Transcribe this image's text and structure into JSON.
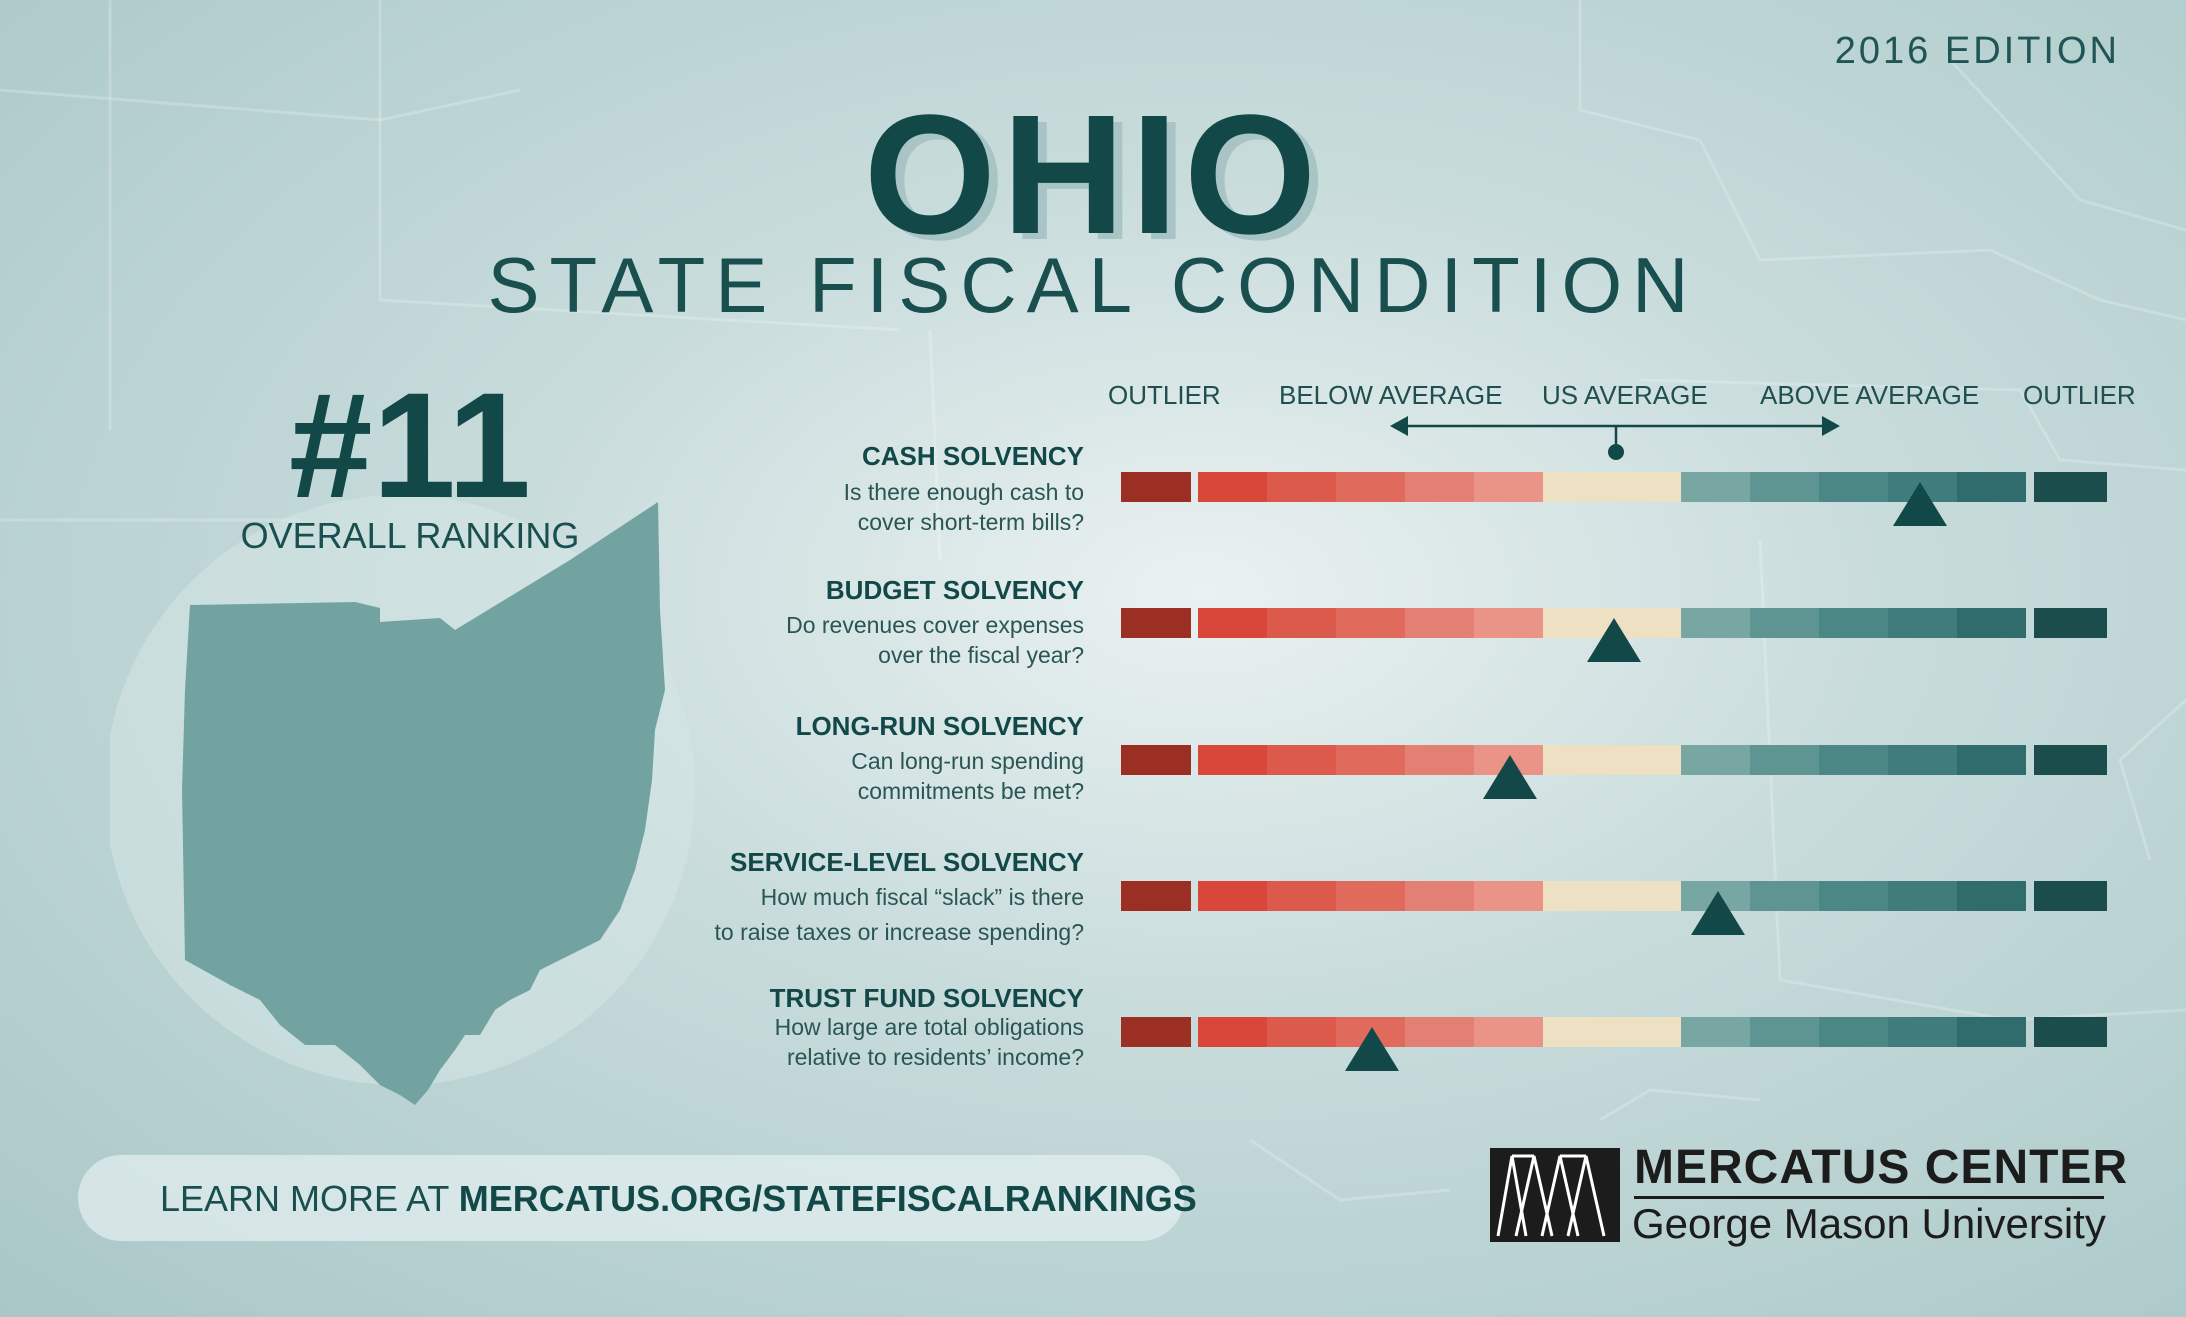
{
  "edition": "2016 EDITION",
  "title": "OHIO",
  "subtitle": "STATE FISCAL CONDITION",
  "rank": "#11",
  "rank_label": "OVERALL RANKING",
  "scale_labels": {
    "outlier_left": "OUTLIER",
    "below": "BELOW AVERAGE",
    "us": "US AVERAGE",
    "above": "ABOVE AVERAGE",
    "outlier_right": "OUTLIER"
  },
  "segment_colors": [
    "#9b2f23",
    "#d8473a",
    "#dc5a4b",
    "#e06b5d",
    "#e48073",
    "#ea9488",
    "#ede0c3",
    "#78a6a2",
    "#5e9592",
    "#4b8885",
    "#3f7c7b",
    "#2f6c6b",
    "#1c4d4d"
  ],
  "marker_color": "#124848",
  "metrics": [
    {
      "title": "CASH SOLVENCY",
      "q1": "Is there enough cash to",
      "q2": "cover short-term bills?",
      "level": 0.81
    },
    {
      "title": "BUDGET SOLVENCY",
      "q1": "Do revenues cover expenses",
      "q2": "over the fiscal year?",
      "level": 0.5
    },
    {
      "title": "LONG-RUN SOLVENCY",
      "q1": "Can long-run spending",
      "q2": "commitments be met?",
      "level": 0.395
    },
    {
      "title": "SERVICE-LEVEL SOLVENCY",
      "q1": "How much fiscal “slack” is there",
      "q2": "to raise taxes or increase spending?",
      "level": 0.605
    },
    {
      "title": "TRUST FUND SOLVENCY",
      "q1": "How large are total obligations",
      "q2": "relative to residents’ income?",
      "level": 0.255
    }
  ],
  "learn_prefix": "LEARN MORE AT ",
  "learn_url": "MERCATUS.ORG/STATEFISCALRANKINGS",
  "logo_name": "MERCATUS CENTER",
  "logo_sub": "George Mason University"
}
